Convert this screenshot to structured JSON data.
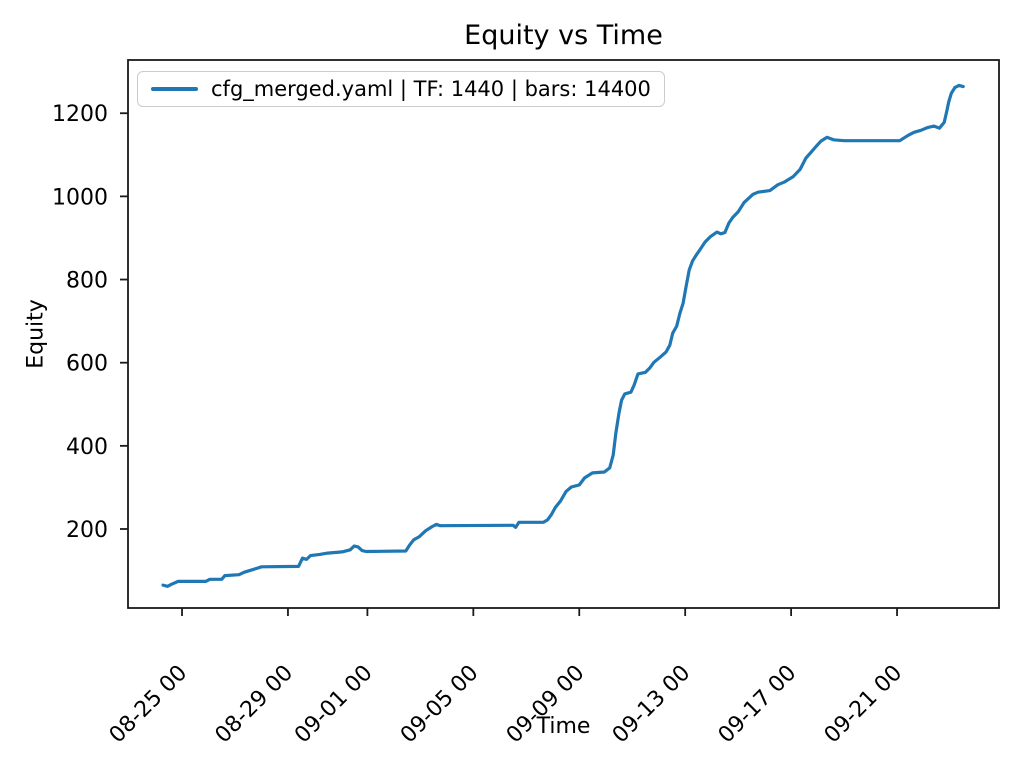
{
  "chart_data": {
    "type": "line",
    "title": "Equity vs Time",
    "xlabel": "Time",
    "ylabel": "Equity",
    "grid": false,
    "legend_position": "upper-left",
    "x_unit": "days since 08-25 00:00",
    "xlim": [
      -2.04,
      30.85
    ],
    "ylim": [
      10,
      1328
    ],
    "xticks": [
      {
        "label": "08-25 00",
        "day": 0
      },
      {
        "label": "08-29 00",
        "day": 4
      },
      {
        "label": "09-01 00",
        "day": 7
      },
      {
        "label": "09-05 00",
        "day": 11
      },
      {
        "label": "09-09 00",
        "day": 15
      },
      {
        "label": "09-13 00",
        "day": 19
      },
      {
        "label": "09-17 00",
        "day": 23
      },
      {
        "label": "09-21 00",
        "day": 27
      }
    ],
    "yticks": [
      200,
      400,
      600,
      800,
      1000,
      1200
    ],
    "series": [
      {
        "name": "cfg_merged.yaml | TF: 1440 | bars: 14400",
        "color": "#1f77b4",
        "line_width": 3.2,
        "points": [
          [
            -0.72,
            65
          ],
          [
            -0.55,
            62
          ],
          [
            -0.4,
            67
          ],
          [
            -0.15,
            74
          ],
          [
            0.9,
            74
          ],
          [
            1.05,
            79
          ],
          [
            1.5,
            79
          ],
          [
            1.62,
            88
          ],
          [
            2.15,
            90
          ],
          [
            2.35,
            96
          ],
          [
            2.6,
            101
          ],
          [
            2.85,
            106
          ],
          [
            3.0,
            109
          ],
          [
            4.4,
            110
          ],
          [
            4.55,
            130
          ],
          [
            4.7,
            127
          ],
          [
            4.85,
            136
          ],
          [
            5.2,
            139
          ],
          [
            5.5,
            142
          ],
          [
            6.05,
            145
          ],
          [
            6.35,
            150
          ],
          [
            6.5,
            159
          ],
          [
            6.65,
            157
          ],
          [
            6.8,
            148
          ],
          [
            6.95,
            146
          ],
          [
            8.45,
            147
          ],
          [
            8.6,
            162
          ],
          [
            8.75,
            174
          ],
          [
            8.95,
            181
          ],
          [
            9.2,
            196
          ],
          [
            9.45,
            206
          ],
          [
            9.6,
            211
          ],
          [
            9.75,
            208
          ],
          [
            12.5,
            209
          ],
          [
            12.6,
            204
          ],
          [
            12.72,
            216
          ],
          [
            13.65,
            216
          ],
          [
            13.8,
            222
          ],
          [
            13.95,
            235
          ],
          [
            14.1,
            252
          ],
          [
            14.3,
            268
          ],
          [
            14.5,
            290
          ],
          [
            14.7,
            301
          ],
          [
            15.0,
            306
          ],
          [
            15.2,
            323
          ],
          [
            15.5,
            335
          ],
          [
            15.95,
            337
          ],
          [
            16.15,
            347
          ],
          [
            16.28,
            378
          ],
          [
            16.38,
            430
          ],
          [
            16.5,
            479
          ],
          [
            16.6,
            510
          ],
          [
            16.72,
            525
          ],
          [
            16.95,
            529
          ],
          [
            17.07,
            546
          ],
          [
            17.22,
            573
          ],
          [
            17.5,
            577
          ],
          [
            17.67,
            588
          ],
          [
            17.82,
            601
          ],
          [
            18.05,
            613
          ],
          [
            18.28,
            626
          ],
          [
            18.42,
            642
          ],
          [
            18.53,
            671
          ],
          [
            18.68,
            688
          ],
          [
            18.8,
            719
          ],
          [
            18.92,
            743
          ],
          [
            19.03,
            782
          ],
          [
            19.15,
            823
          ],
          [
            19.28,
            845
          ],
          [
            19.42,
            859
          ],
          [
            19.56,
            872
          ],
          [
            19.75,
            890
          ],
          [
            19.95,
            903
          ],
          [
            20.2,
            914
          ],
          [
            20.35,
            910
          ],
          [
            20.5,
            913
          ],
          [
            20.65,
            936
          ],
          [
            20.8,
            950
          ],
          [
            21.0,
            963
          ],
          [
            21.22,
            985
          ],
          [
            21.56,
            1005
          ],
          [
            21.75,
            1010
          ],
          [
            22.2,
            1014
          ],
          [
            22.5,
            1028
          ],
          [
            22.73,
            1034
          ],
          [
            23.07,
            1047
          ],
          [
            23.34,
            1065
          ],
          [
            23.56,
            1092
          ],
          [
            23.75,
            1106
          ],
          [
            23.94,
            1120
          ],
          [
            24.13,
            1133
          ],
          [
            24.35,
            1142
          ],
          [
            24.6,
            1136
          ],
          [
            25.0,
            1134
          ],
          [
            27.1,
            1134
          ],
          [
            27.42,
            1147
          ],
          [
            27.64,
            1154
          ],
          [
            27.9,
            1159
          ],
          [
            28.17,
            1166
          ],
          [
            28.4,
            1169
          ],
          [
            28.6,
            1164
          ],
          [
            28.78,
            1178
          ],
          [
            28.88,
            1205
          ],
          [
            28.95,
            1227
          ],
          [
            29.05,
            1248
          ],
          [
            29.19,
            1262
          ],
          [
            29.34,
            1267
          ],
          [
            29.5,
            1264
          ]
        ]
      }
    ]
  }
}
